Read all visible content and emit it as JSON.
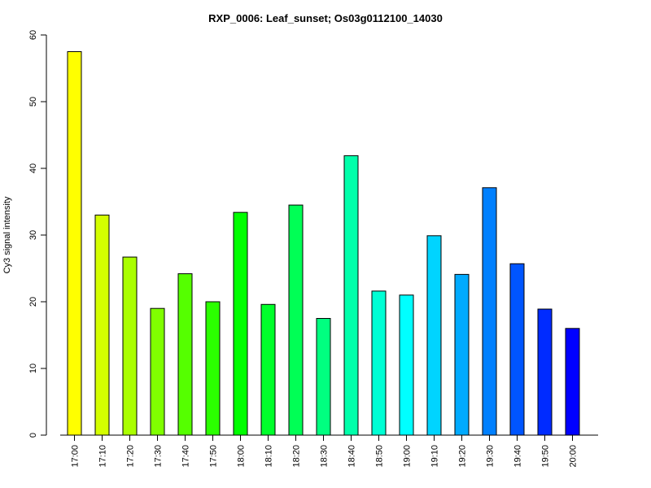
{
  "chart_data": {
    "type": "bar",
    "title": "RXP_0006: Leaf_sunset; Os03g0112100_14030",
    "xlabel": "",
    "ylabel": "Cy3 signal intensity",
    "ylim": [
      0,
      60
    ],
    "yticks": [
      0,
      10,
      20,
      30,
      40,
      50,
      60
    ],
    "grid": false,
    "categories": [
      "17:00",
      "17:10",
      "17:20",
      "17:30",
      "17:40",
      "17:50",
      "18:00",
      "18:10",
      "18:20",
      "18:30",
      "18:40",
      "18:50",
      "19:00",
      "19:10",
      "19:20",
      "19:30",
      "19:40",
      "19:50",
      "20:00"
    ],
    "values": [
      57.5,
      33.0,
      26.7,
      19.0,
      24.2,
      20.0,
      33.4,
      19.6,
      34.5,
      17.5,
      41.9,
      21.6,
      21.0,
      29.9,
      24.1,
      37.1,
      25.7,
      18.9,
      16.0
    ],
    "colors": [
      "#FFFF00",
      "#D4FF00",
      "#AAFF00",
      "#80FF00",
      "#55FF00",
      "#2BFF00",
      "#00FF00",
      "#00FF2B",
      "#00FF55",
      "#00FF80",
      "#00FFAA",
      "#00FFD4",
      "#00FFFF",
      "#00D4FF",
      "#00AAFF",
      "#0080FF",
      "#0055FF",
      "#002BFF",
      "#0000FF"
    ]
  }
}
